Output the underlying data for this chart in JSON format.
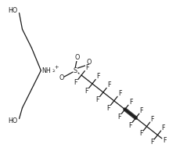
{
  "bg_color": "#ffffff",
  "line_color": "#1a1a1a",
  "text_color": "#1a1a1a",
  "lw": 0.9,
  "fs": 5.8,
  "figsize": [
    2.16,
    1.98
  ],
  "dpi": 100,
  "xlim": [
    0,
    216
  ],
  "ylim": [
    0,
    198
  ],
  "n_x": 55,
  "n_y": 90,
  "s_x": 95,
  "s_y": 88
}
